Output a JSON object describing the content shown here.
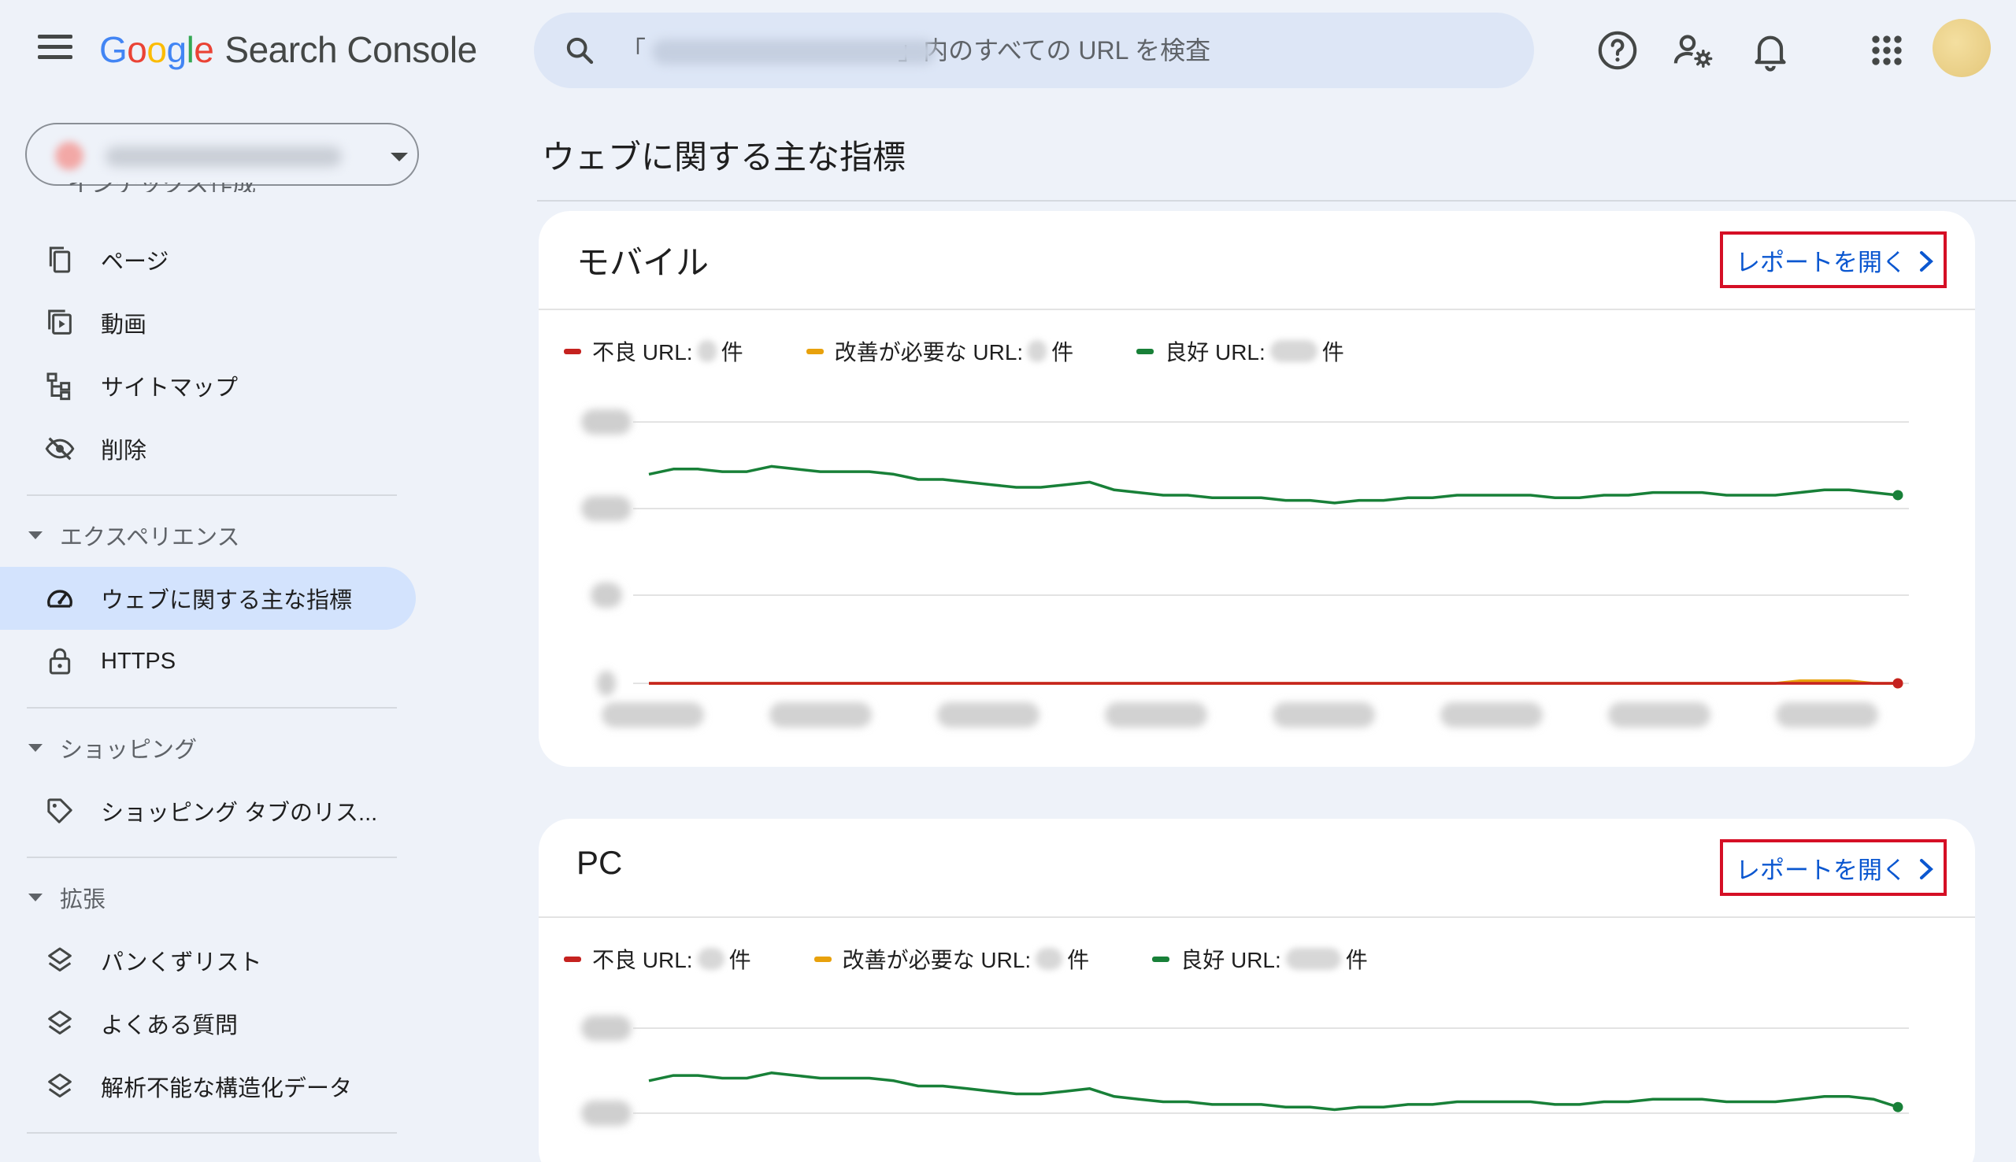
{
  "header": {
    "logo_google": [
      "G",
      "o",
      "o",
      "g",
      "l",
      "e"
    ],
    "product_name": "Search Console",
    "search_placeholder": "「                                    」内のすべての URL を検査"
  },
  "icons": {
    "menu": "hamburger-menu-icon",
    "search": "search-icon",
    "help": "help-circle-icon",
    "settings": "user-settings-icon",
    "notifications": "bell-icon",
    "apps": "apps-grid-icon"
  },
  "sidebar": {
    "partial_item": "インデックス作成",
    "items_top": [
      {
        "label": "ページ",
        "icon": "pages-icon"
      },
      {
        "label": "動画",
        "icon": "video-icon"
      },
      {
        "label": "サイトマップ",
        "icon": "sitemap-icon"
      },
      {
        "label": "削除",
        "icon": "removal-icon"
      }
    ],
    "sections": [
      {
        "label": "エクスペリエンス",
        "items": [
          {
            "label": "ウェブに関する主な指標",
            "icon": "speedometer-icon",
            "active": true
          },
          {
            "label": "HTTPS",
            "icon": "lock-icon",
            "active": false
          }
        ]
      },
      {
        "label": "ショッピング",
        "items": [
          {
            "label": "ショッピング タブのリス...",
            "icon": "tag-icon",
            "active": false
          }
        ]
      },
      {
        "label": "拡張",
        "items": [
          {
            "label": "パンくずリスト",
            "icon": "layers-icon",
            "active": false
          },
          {
            "label": "よくある質問",
            "icon": "layers-icon",
            "active": false
          },
          {
            "label": "解析不能な構造化データ",
            "icon": "layers-icon",
            "active": false
          }
        ]
      }
    ]
  },
  "main": {
    "page_title": "ウェブに関する主な指標",
    "cards": [
      {
        "title": "モバイル",
        "link_label": "レポートを開く",
        "legend": [
          {
            "label": "不良 URL:",
            "suffix": "件",
            "color": "#c5221f"
          },
          {
            "label": "改善が必要な URL:",
            "suffix": "件",
            "color": "#e8a10c"
          },
          {
            "label": "良好 URL:",
            "suffix": "件",
            "color": "#188038"
          }
        ]
      },
      {
        "title": "PC",
        "link_label": "レポートを開く",
        "legend": [
          {
            "label": "不良 URL:",
            "suffix": "件",
            "color": "#c5221f"
          },
          {
            "label": "改善が必要な URL:",
            "suffix": "件",
            "color": "#e8a10c"
          },
          {
            "label": "良好 URL:",
            "suffix": "件",
            "color": "#188038"
          }
        ]
      }
    ]
  },
  "colors": {
    "accent_blue": "#0b57d0",
    "highlight_red": "#d50f25",
    "active_nav": "#d3e3fd",
    "poor": "#c5221f",
    "needs_improvement": "#e8a10c",
    "good": "#188038"
  },
  "chart_data": [
    {
      "type": "line",
      "title": "モバイル",
      "axis_labels_obscured": true,
      "grid": true,
      "legend_position": "top-left",
      "series": [
        {
          "name": "良好 URL",
          "color": "#188038",
          "values": [
            0.8,
            0.82,
            0.82,
            0.81,
            0.81,
            0.83,
            0.82,
            0.81,
            0.81,
            0.81,
            0.8,
            0.78,
            0.78,
            0.77,
            0.76,
            0.75,
            0.75,
            0.76,
            0.77,
            0.74,
            0.73,
            0.72,
            0.72,
            0.71,
            0.71,
            0.71,
            0.7,
            0.7,
            0.69,
            0.7,
            0.7,
            0.71,
            0.71,
            0.72,
            0.72,
            0.72,
            0.72,
            0.71,
            0.71,
            0.72,
            0.72,
            0.73,
            0.73,
            0.73,
            0.72,
            0.72,
            0.72,
            0.73,
            0.74,
            0.74,
            0.73,
            0.72
          ]
        },
        {
          "name": "不良 URL",
          "color": "#c5221f",
          "values": [
            0,
            0,
            0,
            0,
            0,
            0,
            0,
            0,
            0,
            0,
            0,
            0,
            0,
            0,
            0,
            0,
            0,
            0,
            0,
            0,
            0,
            0,
            0,
            0,
            0,
            0,
            0,
            0,
            0,
            0,
            0,
            0,
            0,
            0,
            0,
            0,
            0,
            0,
            0,
            0,
            0,
            0,
            0,
            0,
            0,
            0,
            0,
            0,
            0,
            0,
            0,
            0
          ]
        },
        {
          "name": "改善が必要な URL",
          "color": "#e8a10c",
          "values": [
            0,
            0,
            0,
            0,
            0,
            0,
            0,
            0,
            0,
            0,
            0,
            0,
            0,
            0,
            0,
            0,
            0,
            0,
            0,
            0,
            0,
            0,
            0,
            0,
            0,
            0,
            0,
            0,
            0,
            0,
            0,
            0,
            0,
            0,
            0,
            0,
            0,
            0,
            0,
            0,
            0,
            0,
            0,
            0,
            0,
            0,
            0,
            0.01,
            0.01,
            0.01,
            0,
            0
          ]
        }
      ]
    },
    {
      "type": "line",
      "title": "PC",
      "axis_labels_obscured": true,
      "grid": true,
      "legend_position": "top-left",
      "series": [
        {
          "name": "良好 URL",
          "color": "#188038",
          "values": [
            0.8,
            0.82,
            0.82,
            0.81,
            0.81,
            0.83,
            0.82,
            0.81,
            0.81,
            0.81,
            0.8,
            0.78,
            0.78,
            0.77,
            0.76,
            0.75,
            0.75,
            0.76,
            0.77,
            0.74,
            0.73,
            0.72,
            0.72,
            0.71,
            0.71,
            0.71,
            0.7,
            0.7,
            0.69,
            0.7,
            0.7,
            0.71,
            0.71,
            0.72,
            0.72,
            0.72,
            0.72,
            0.71,
            0.71,
            0.72,
            0.72,
            0.73,
            0.73,
            0.73,
            0.72,
            0.72,
            0.72,
            0.73,
            0.74,
            0.74,
            0.73,
            0.7
          ]
        }
      ]
    }
  ]
}
